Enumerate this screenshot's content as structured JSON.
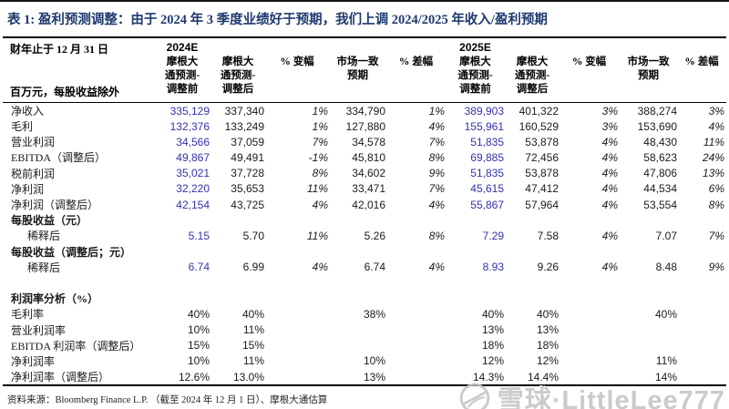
{
  "page": {
    "title": "表 1: 盈利预测调整：由于 2024 年 3 季度业绩好于预期，我们上调 2024/2025 年收入/盈利预期",
    "footer": "资料来源：Bloomberg Finance L.P. （截至 2024 年 12 月 1 日）、摩根大通估算"
  },
  "colors": {
    "title_navy": "#1f3a6e",
    "value_blue": "#3232a8"
  },
  "watermark": {
    "logo": "snowball-logo",
    "text": "雪球·LittleLee777"
  },
  "table": {
    "fiscal_note": "财年止于 12 月 31 日",
    "unit_note": "百万元，每股收益除外",
    "year_groups": [
      {
        "label": "2024E",
        "columns": [
          "摩根大\n通预测-\n调整前",
          "摩根大\n通预测-\n调整后",
          "% 变幅",
          "市场一致\n预期",
          "% 差幅"
        ]
      },
      {
        "label": "2025E",
        "columns": [
          "摩根大\n通预测-\n调整前",
          "摩根大\n通预测-\n调整后",
          "% 变幅",
          "市场一致\n预期",
          "% 差幅"
        ]
      }
    ],
    "rows": [
      {
        "label": "净收入",
        "type": "data",
        "values": [
          "335,129",
          "337,340",
          "1%",
          "334,790",
          "1%",
          "389,903",
          "401,322",
          "3%",
          "388,274",
          "3%"
        ]
      },
      {
        "label": "毛利",
        "type": "data",
        "values": [
          "132,376",
          "133,249",
          "1%",
          "127,880",
          "4%",
          "155,961",
          "160,529",
          "3%",
          "153,690",
          "4%"
        ]
      },
      {
        "label": "营业利润",
        "type": "data",
        "values": [
          "34,566",
          "37,059",
          "7%",
          "34,578",
          "7%",
          "51,835",
          "53,878",
          "4%",
          "48,430",
          "11%"
        ]
      },
      {
        "label": "EBITDA（调整后）",
        "type": "data",
        "values": [
          "49,867",
          "49,491",
          "-1%",
          "45,810",
          "8%",
          "69,885",
          "72,456",
          "4%",
          "58,623",
          "24%"
        ]
      },
      {
        "label": "税前利润",
        "type": "data",
        "values": [
          "35,021",
          "37,728",
          "8%",
          "34,602",
          "9%",
          "51,835",
          "53,878",
          "4%",
          "47,806",
          "13%"
        ]
      },
      {
        "label": "净利润",
        "type": "data",
        "values": [
          "32,220",
          "35,653",
          "11%",
          "33,471",
          "7%",
          "45,615",
          "47,412",
          "4%",
          "44,534",
          "6%"
        ]
      },
      {
        "label": "净利润（调整后）",
        "type": "data",
        "values": [
          "42,154",
          "43,725",
          "4%",
          "42,016",
          "4%",
          "55,867",
          "57,964",
          "4%",
          "53,554",
          "8%"
        ]
      },
      {
        "label": "每股收益（元）",
        "type": "section"
      },
      {
        "label": "稀释后",
        "type": "data",
        "indent": 1,
        "values": [
          "5.15",
          "5.70",
          "11%",
          "5.26",
          "8%",
          "7.29",
          "7.58",
          "4%",
          "7.07",
          "7%"
        ]
      },
      {
        "label": "每股收益（调整后；元）",
        "type": "section"
      },
      {
        "label": "稀释后",
        "type": "data",
        "indent": 1,
        "values": [
          "6.74",
          "6.99",
          "4%",
          "6.74",
          "4%",
          "8.93",
          "9.26",
          "4%",
          "8.48",
          "9%"
        ]
      },
      {
        "label": "",
        "type": "blank"
      },
      {
        "label": "利润率分析（%）",
        "type": "section"
      },
      {
        "label": "毛利率",
        "type": "margin",
        "values": [
          "40%",
          "40%",
          "",
          "38%",
          "",
          "40%",
          "40%",
          "",
          "40%",
          ""
        ]
      },
      {
        "label": "营业利润率",
        "type": "margin",
        "values": [
          "10%",
          "11%",
          "",
          "",
          "",
          "13%",
          "13%",
          "",
          "",
          ""
        ]
      },
      {
        "label": "EBITDA 利润率（调整后）",
        "type": "margin",
        "values": [
          "15%",
          "15%",
          "",
          "",
          "",
          "18%",
          "18%",
          "",
          "",
          ""
        ]
      },
      {
        "label": "净利润率",
        "type": "margin",
        "values": [
          "10%",
          "11%",
          "",
          "10%",
          "",
          "12%",
          "12%",
          "",
          "11%",
          ""
        ]
      },
      {
        "label": "净利润率（调整后）",
        "type": "margin",
        "values": [
          "12.6%",
          "13.0%",
          "",
          "13%",
          "",
          "14.3%",
          "14.4%",
          "",
          "14%",
          ""
        ]
      }
    ]
  }
}
